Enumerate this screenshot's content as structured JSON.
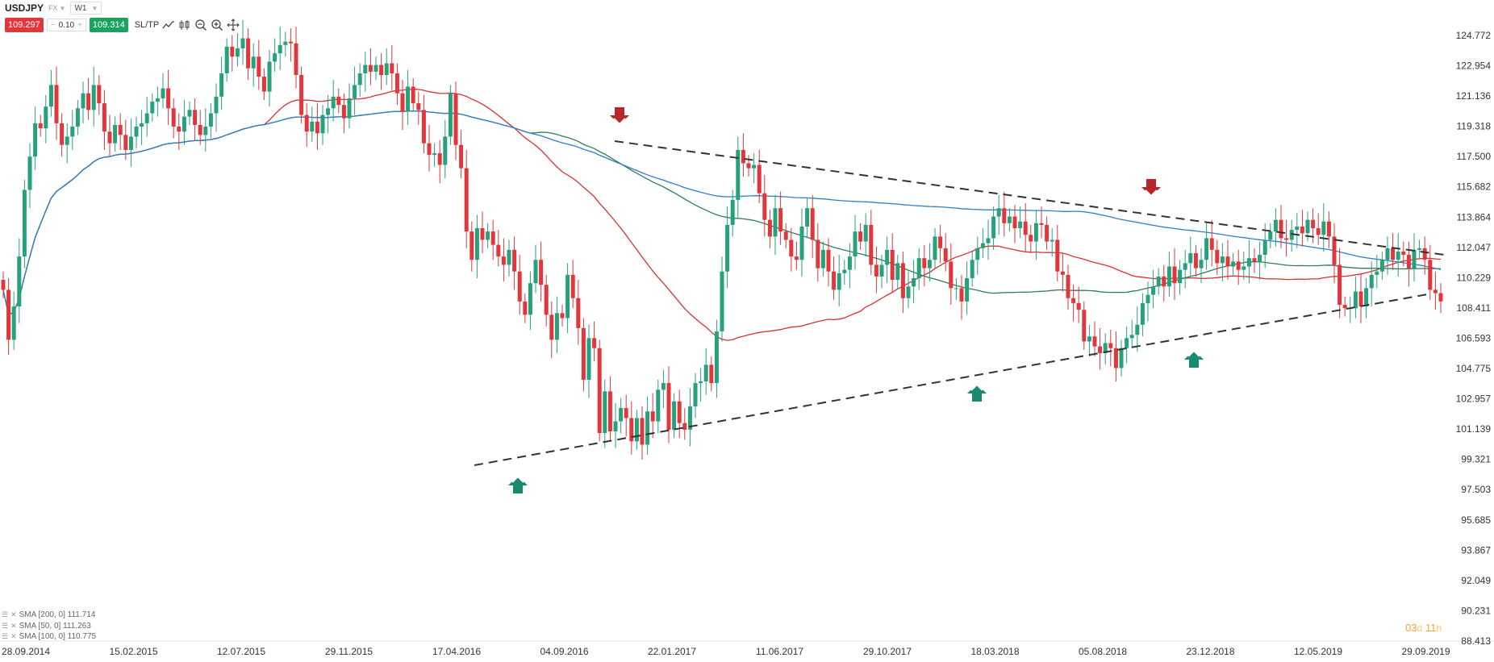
{
  "header": {
    "symbol": "USDJPY",
    "market": "FX",
    "timeframe": "W1",
    "sell_price": "109.297",
    "volume": "0.10",
    "volume_minus": "−",
    "volume_plus": "+",
    "buy_price": "109.314",
    "sltp_label": "SL/TP"
  },
  "colors": {
    "bull": "#26a17b",
    "bear": "#e0363c",
    "sma200": "#2f7ec8",
    "sma50": "#d93030",
    "sma100": "#2e7d5b",
    "arrow_up": "#1a8a6e",
    "arrow_down": "#b7282c"
  },
  "icons": [
    "line-chart-icon",
    "candle-chart-icon",
    "zoom-out-icon",
    "zoom-in-icon",
    "crosshair-icon"
  ],
  "indicators": [
    {
      "label": "SMA [200, 0] 111.714",
      "color": "#2f7ec8"
    },
    {
      "label": "SMA [50, 0] 111.263",
      "color": "#d93030"
    },
    {
      "label": "SMA [100, 0] 110.775",
      "color": "#2e7d5b"
    }
  ],
  "countdown": {
    "days": "03",
    "d": "d",
    "hours": "11",
    "h": "h"
  },
  "chart_data": {
    "type": "candlestick",
    "ylim": [
      88.411,
      124.772
    ],
    "y_ticks": [
      "124.772",
      "122.954",
      "121.136",
      "119.318",
      "117.500",
      "115.682",
      "113.864",
      "112.047",
      "110.229",
      "108.411",
      "106.593",
      "104.775",
      "102.957",
      "101.139",
      "99.321",
      "97.503",
      "95.685",
      "93.867",
      "92.049",
      "90.231",
      "88.413"
    ],
    "x_ticks": [
      "28.09.2014",
      "15.02.2015",
      "12.07.2015",
      "29.11.2015",
      "17.04.2016",
      "04.09.2016",
      "22.01.2017",
      "11.06.2017",
      "29.10.2017",
      "18.03.2018",
      "05.08.2018",
      "23.12.2018",
      "12.05.2019",
      "29.09.2019"
    ],
    "closes": [
      109.5,
      106.5,
      108.5,
      111.5,
      115.5,
      117.5,
      119.5,
      119.2,
      120.5,
      121.8,
      119.5,
      118.2,
      118.7,
      119.3,
      120.4,
      121.3,
      120.3,
      121.8,
      120.7,
      119.0,
      118.3,
      119.4,
      118.8,
      117.9,
      118.7,
      119.3,
      119.5,
      120.1,
      120.8,
      121.0,
      121.6,
      120.4,
      119.3,
      119.0,
      119.9,
      120.3,
      119.4,
      118.8,
      119.3,
      120.1,
      121.1,
      122.5,
      124.1,
      123.5,
      124.0,
      124.6,
      122.8,
      123.5,
      122.3,
      121.4,
      123.2,
      123.7,
      124.2,
      124.4,
      124.3,
      122.4,
      120.0,
      119.0,
      119.6,
      118.9,
      120.0,
      120.4,
      121.1,
      120.6,
      119.8,
      121.0,
      121.8,
      122.5,
      123.0,
      122.6,
      123.0,
      122.4,
      123.1,
      122.5,
      121.3,
      120.2,
      121.7,
      120.7,
      120.3,
      118.3,
      117.6,
      117.7,
      117.0,
      118.7,
      121.3,
      118.2,
      116.8,
      113.0,
      111.3,
      113.2,
      112.5,
      113.0,
      112.2,
      111.5,
      111.0,
      111.9,
      110.6,
      108.8,
      108.0,
      109.9,
      111.3,
      109.8,
      108.0,
      106.5,
      108.1,
      107.8,
      110.4,
      109.0,
      107.2,
      104.1,
      106.6,
      106.0,
      100.9,
      103.4,
      101.0,
      101.6,
      102.4,
      101.8,
      100.4,
      101.8,
      100.2,
      102.2,
      101.6,
      103.5,
      103.9,
      101.1,
      102.8,
      101.5,
      101.1,
      102.5,
      103.9,
      104.0,
      105.0,
      103.9,
      107.0,
      110.6,
      113.4,
      114.9,
      117.9,
      117.1,
      116.8,
      117.0,
      115.3,
      113.7,
      112.7,
      114.4,
      113.0,
      112.5,
      111.5,
      111.3,
      113.3,
      114.4,
      112.5,
      110.8,
      111.9,
      110.6,
      109.5,
      110.5,
      110.7,
      111.5,
      113.0,
      112.4,
      113.4,
      111.0,
      110.3,
      111.0,
      111.9,
      110.1,
      111.1,
      109.0,
      109.7,
      110.2,
      111.4,
      110.8,
      111.3,
      112.7,
      112.0,
      111.2,
      109.6,
      109.6,
      108.8,
      110.2,
      111.3,
      112.0,
      112.3,
      112.6,
      113.9,
      114.4,
      113.5,
      113.9,
      113.2,
      113.6,
      112.8,
      112.4,
      113.5,
      113.4,
      112.4,
      112.5,
      110.6,
      110.4,
      109.0,
      108.7,
      108.3,
      106.4,
      106.7,
      106.1,
      105.7,
      106.3,
      106.0,
      104.8,
      106.0,
      106.6,
      106.8,
      107.4,
      108.7,
      109.2,
      109.7,
      110.3,
      109.7,
      110.9,
      109.9,
      110.7,
      111.1,
      111.7,
      110.8,
      111.3,
      112.6,
      111.9,
      111.1,
      111.5,
      110.9,
      111.2,
      110.7,
      110.9,
      111.4,
      111.2,
      111.6,
      112.5,
      113.0,
      113.7,
      112.6,
      112.5,
      113.1,
      113.3,
      112.9,
      113.7,
      113.2,
      112.8,
      113.6,
      112.7,
      111.0,
      108.6,
      108.4,
      108.4,
      109.4,
      108.5,
      109.6,
      110.4,
      110.6,
      111.3,
      112.0,
      111.3,
      111.8,
      111.6,
      110.8,
      111.9,
      112.0,
      111.3,
      109.5,
      109.3,
      108.8
    ]
  }
}
